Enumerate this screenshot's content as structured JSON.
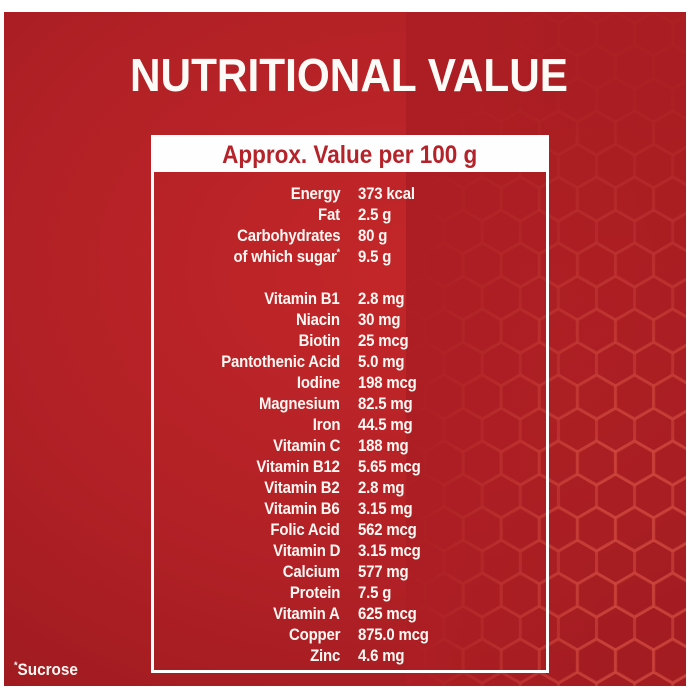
{
  "title": "NUTRITIONAL VALUE",
  "panel": {
    "header": "Approx. Value per 100 g"
  },
  "rows": [
    {
      "label": "Energy",
      "value": "373 kcal"
    },
    {
      "label": "Fat",
      "value": "2.5 g"
    },
    {
      "label": "Carbohydrates",
      "value": "80 g"
    },
    {
      "label": "of which sugar",
      "sup": "*",
      "value": "9.5 g"
    },
    {
      "label": "Vitamin B1",
      "value": "2.8 mg",
      "group": 2
    },
    {
      "label": "Niacin",
      "value": "30 mg"
    },
    {
      "label": "Biotin",
      "value": "25 mcg"
    },
    {
      "label": "Pantothenic Acid",
      "value": "5.0 mg"
    },
    {
      "label": "Iodine",
      "value": "198 mcg"
    },
    {
      "label": "Magnesium",
      "value": "82.5 mg"
    },
    {
      "label": "Iron",
      "value": "44.5 mg"
    },
    {
      "label": "Vitamin C",
      "value": "188 mg"
    },
    {
      "label": "Vitamin B12",
      "value": "5.65 mcg"
    },
    {
      "label": "Vitamin B2",
      "value": "2.8 mg"
    },
    {
      "label": "Vitamin B6",
      "value": "3.15 mg"
    },
    {
      "label": "Folic Acid",
      "value": "562 mcg"
    },
    {
      "label": "Vitamin D",
      "value": "3.15 mcg"
    },
    {
      "label": "Calcium",
      "value": "577 mg"
    },
    {
      "label": "Protein",
      "value": "7.5 g"
    },
    {
      "label": "Vitamin A",
      "value": "625 mcg"
    },
    {
      "label": "Copper",
      "value": "875.0 mcg"
    },
    {
      "label": "Zinc",
      "value": "4.6 mg"
    }
  ],
  "footnote": {
    "marker": "*",
    "text": "Sucrose"
  },
  "colors": {
    "background_red": "#b22126",
    "background_red_bright": "#c32629",
    "background_red_dark": "#8d181c",
    "accent_red_text": "#b5232a",
    "panel_white": "#fefefe",
    "text_white": "#fbf7f3",
    "hexagon_line": "#d24a40"
  }
}
